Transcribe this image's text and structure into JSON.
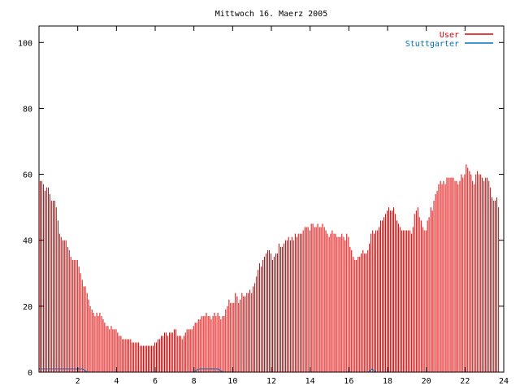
{
  "chart_data": {
    "type": "bar",
    "title": "Mittwoch 16. Maerz 2005",
    "xlabel": "",
    "ylabel": "",
    "xlim": [
      0,
      24
    ],
    "ylim": [
      0,
      105
    ],
    "x_ticks": [
      2,
      4,
      6,
      8,
      10,
      12,
      14,
      16,
      18,
      20,
      22,
      24
    ],
    "y_ticks": [
      0,
      20,
      40,
      60,
      80,
      100
    ],
    "grid": false,
    "legend_position": "top-right",
    "series": [
      {
        "name": "User",
        "color": "#e00000",
        "points": [
          [
            0.0,
            58
          ],
          [
            0.08,
            58
          ],
          [
            0.17,
            57
          ],
          [
            0.25,
            55
          ],
          [
            0.33,
            56
          ],
          [
            0.42,
            56
          ],
          [
            0.5,
            54
          ],
          [
            0.58,
            52
          ],
          [
            0.67,
            52
          ],
          [
            0.75,
            52
          ],
          [
            0.83,
            50
          ],
          [
            0.92,
            46
          ],
          [
            1.0,
            42
          ],
          [
            1.08,
            41
          ],
          [
            1.17,
            40
          ],
          [
            1.25,
            40
          ],
          [
            1.33,
            40
          ],
          [
            1.42,
            38
          ],
          [
            1.5,
            37
          ],
          [
            1.58,
            35
          ],
          [
            1.67,
            34
          ],
          [
            1.75,
            34
          ],
          [
            1.83,
            34
          ],
          [
            1.92,
            34
          ],
          [
            2.0,
            32
          ],
          [
            2.08,
            30
          ],
          [
            2.17,
            28
          ],
          [
            2.25,
            26
          ],
          [
            2.33,
            26
          ],
          [
            2.42,
            24
          ],
          [
            2.5,
            22
          ],
          [
            2.58,
            20
          ],
          [
            2.67,
            19
          ],
          [
            2.75,
            18
          ],
          [
            2.83,
            17
          ],
          [
            2.92,
            18
          ],
          [
            3.0,
            17
          ],
          [
            3.08,
            18
          ],
          [
            3.17,
            17
          ],
          [
            3.25,
            16
          ],
          [
            3.33,
            15
          ],
          [
            3.42,
            14
          ],
          [
            3.5,
            14
          ],
          [
            3.58,
            13
          ],
          [
            3.67,
            14
          ],
          [
            3.75,
            13
          ],
          [
            3.83,
            13
          ],
          [
            3.92,
            13
          ],
          [
            4.0,
            12
          ],
          [
            4.08,
            11
          ],
          [
            4.17,
            11
          ],
          [
            4.25,
            10
          ],
          [
            4.33,
            10
          ],
          [
            4.42,
            10
          ],
          [
            4.5,
            10
          ],
          [
            4.58,
            10
          ],
          [
            4.67,
            10
          ],
          [
            4.75,
            9
          ],
          [
            4.83,
            9
          ],
          [
            4.92,
            9
          ],
          [
            5.0,
            9
          ],
          [
            5.08,
            9
          ],
          [
            5.17,
            8
          ],
          [
            5.25,
            8
          ],
          [
            5.33,
            8
          ],
          [
            5.42,
            8
          ],
          [
            5.5,
            8
          ],
          [
            5.58,
            8
          ],
          [
            5.67,
            8
          ],
          [
            5.75,
            8
          ],
          [
            5.83,
            8
          ],
          [
            5.92,
            9
          ],
          [
            6.0,
            9
          ],
          [
            6.08,
            10
          ],
          [
            6.17,
            10
          ],
          [
            6.25,
            11
          ],
          [
            6.33,
            11
          ],
          [
            6.42,
            12
          ],
          [
            6.5,
            12
          ],
          [
            6.58,
            11
          ],
          [
            6.67,
            12
          ],
          [
            6.75,
            12
          ],
          [
            6.83,
            12
          ],
          [
            6.92,
            13
          ],
          [
            7.0,
            13
          ],
          [
            7.08,
            11
          ],
          [
            7.17,
            11
          ],
          [
            7.25,
            11
          ],
          [
            7.33,
            10
          ],
          [
            7.42,
            11
          ],
          [
            7.5,
            12
          ],
          [
            7.58,
            13
          ],
          [
            7.67,
            13
          ],
          [
            7.75,
            13
          ],
          [
            7.83,
            13
          ],
          [
            7.92,
            14
          ],
          [
            8.0,
            15
          ],
          [
            8.08,
            15
          ],
          [
            8.17,
            16
          ],
          [
            8.25,
            16
          ],
          [
            8.33,
            17
          ],
          [
            8.42,
            17
          ],
          [
            8.5,
            17
          ],
          [
            8.58,
            18
          ],
          [
            8.67,
            17
          ],
          [
            8.75,
            17
          ],
          [
            8.83,
            16
          ],
          [
            8.92,
            17
          ],
          [
            9.0,
            18
          ],
          [
            9.08,
            17
          ],
          [
            9.17,
            18
          ],
          [
            9.25,
            17
          ],
          [
            9.33,
            16
          ],
          [
            9.42,
            17
          ],
          [
            9.5,
            17
          ],
          [
            9.58,
            19
          ],
          [
            9.67,
            20
          ],
          [
            9.75,
            22
          ],
          [
            9.83,
            21
          ],
          [
            9.92,
            21
          ],
          [
            10.0,
            21
          ],
          [
            10.08,
            24
          ],
          [
            10.17,
            23
          ],
          [
            10.25,
            21
          ],
          [
            10.33,
            22
          ],
          [
            10.42,
            24
          ],
          [
            10.5,
            23
          ],
          [
            10.58,
            23
          ],
          [
            10.67,
            24
          ],
          [
            10.75,
            24
          ],
          [
            10.83,
            25
          ],
          [
            10.92,
            24
          ],
          [
            11.0,
            26
          ],
          [
            11.08,
            27
          ],
          [
            11.17,
            29
          ],
          [
            11.25,
            31
          ],
          [
            11.33,
            33
          ],
          [
            11.42,
            32
          ],
          [
            11.5,
            34
          ],
          [
            11.58,
            35
          ],
          [
            11.67,
            36
          ],
          [
            11.75,
            37
          ],
          [
            11.83,
            37
          ],
          [
            11.92,
            36
          ],
          [
            12.0,
            34
          ],
          [
            12.08,
            35
          ],
          [
            12.17,
            36
          ],
          [
            12.25,
            36
          ],
          [
            12.33,
            39
          ],
          [
            12.42,
            38
          ],
          [
            12.5,
            38
          ],
          [
            12.58,
            39
          ],
          [
            12.67,
            40
          ],
          [
            12.75,
            40
          ],
          [
            12.83,
            41
          ],
          [
            12.92,
            40
          ],
          [
            13.0,
            41
          ],
          [
            13.08,
            40
          ],
          [
            13.17,
            42
          ],
          [
            13.25,
            41
          ],
          [
            13.33,
            42
          ],
          [
            13.42,
            42
          ],
          [
            13.5,
            42
          ],
          [
            13.58,
            43
          ],
          [
            13.67,
            44
          ],
          [
            13.75,
            44
          ],
          [
            13.83,
            44
          ],
          [
            13.92,
            43
          ],
          [
            14.0,
            45
          ],
          [
            14.08,
            45
          ],
          [
            14.17,
            44
          ],
          [
            14.25,
            44
          ],
          [
            14.33,
            45
          ],
          [
            14.42,
            44
          ],
          [
            14.5,
            44
          ],
          [
            14.58,
            45
          ],
          [
            14.67,
            44
          ],
          [
            14.75,
            43
          ],
          [
            14.83,
            42
          ],
          [
            14.92,
            41
          ],
          [
            15.0,
            42
          ],
          [
            15.08,
            43
          ],
          [
            15.17,
            42
          ],
          [
            15.25,
            42
          ],
          [
            15.33,
            41
          ],
          [
            15.42,
            41
          ],
          [
            15.5,
            41
          ],
          [
            15.58,
            42
          ],
          [
            15.67,
            41
          ],
          [
            15.75,
            40
          ],
          [
            15.83,
            42
          ],
          [
            15.92,
            41
          ],
          [
            16.0,
            38
          ],
          [
            16.08,
            37
          ],
          [
            16.17,
            35
          ],
          [
            16.25,
            34
          ],
          [
            16.33,
            34
          ],
          [
            16.42,
            35
          ],
          [
            16.5,
            35
          ],
          [
            16.58,
            36
          ],
          [
            16.67,
            37
          ],
          [
            16.75,
            36
          ],
          [
            16.83,
            36
          ],
          [
            16.92,
            37
          ],
          [
            17.0,
            39
          ],
          [
            17.08,
            42
          ],
          [
            17.17,
            43
          ],
          [
            17.25,
            42
          ],
          [
            17.33,
            43
          ],
          [
            17.42,
            43
          ],
          [
            17.5,
            44
          ],
          [
            17.58,
            46
          ],
          [
            17.67,
            46
          ],
          [
            17.75,
            47
          ],
          [
            17.83,
            48
          ],
          [
            17.92,
            49
          ],
          [
            18.0,
            50
          ],
          [
            18.08,
            49
          ],
          [
            18.17,
            49
          ],
          [
            18.25,
            50
          ],
          [
            18.33,
            48
          ],
          [
            18.42,
            46
          ],
          [
            18.5,
            45
          ],
          [
            18.58,
            44
          ],
          [
            18.67,
            43
          ],
          [
            18.75,
            43
          ],
          [
            18.83,
            43
          ],
          [
            18.92,
            43
          ],
          [
            19.0,
            43
          ],
          [
            19.08,
            43
          ],
          [
            19.17,
            42
          ],
          [
            19.25,
            44
          ],
          [
            19.33,
            48
          ],
          [
            19.42,
            49
          ],
          [
            19.5,
            50
          ],
          [
            19.58,
            47
          ],
          [
            19.67,
            46
          ],
          [
            19.75,
            44
          ],
          [
            19.83,
            43
          ],
          [
            19.92,
            43
          ],
          [
            20.0,
            46
          ],
          [
            20.08,
            47
          ],
          [
            20.17,
            50
          ],
          [
            20.25,
            49
          ],
          [
            20.33,
            52
          ],
          [
            20.42,
            54
          ],
          [
            20.5,
            55
          ],
          [
            20.58,
            57
          ],
          [
            20.67,
            58
          ],
          [
            20.75,
            57
          ],
          [
            20.83,
            58
          ],
          [
            20.92,
            57
          ],
          [
            21.0,
            59
          ],
          [
            21.08,
            59
          ],
          [
            21.17,
            59
          ],
          [
            21.25,
            59
          ],
          [
            21.33,
            59
          ],
          [
            21.42,
            58
          ],
          [
            21.5,
            58
          ],
          [
            21.58,
            57
          ],
          [
            21.67,
            58
          ],
          [
            21.75,
            60
          ],
          [
            21.83,
            59
          ],
          [
            21.92,
            60
          ],
          [
            22.0,
            63
          ],
          [
            22.08,
            62
          ],
          [
            22.17,
            61
          ],
          [
            22.25,
            60
          ],
          [
            22.33,
            58
          ],
          [
            22.42,
            57
          ],
          [
            22.5,
            60
          ],
          [
            22.58,
            61
          ],
          [
            22.67,
            60
          ],
          [
            22.75,
            60
          ],
          [
            22.83,
            59
          ],
          [
            22.92,
            58
          ],
          [
            23.0,
            59
          ],
          [
            23.08,
            59
          ],
          [
            23.17,
            58
          ],
          [
            23.25,
            56
          ],
          [
            23.33,
            53
          ],
          [
            23.42,
            52
          ],
          [
            23.5,
            52
          ],
          [
            23.58,
            53
          ],
          [
            23.67,
            50
          ]
        ]
      },
      {
        "name": "Stuttgarter",
        "color": "#0070c0",
        "points": [
          [
            0.0,
            1
          ],
          [
            0.25,
            1
          ],
          [
            0.5,
            1
          ],
          [
            0.75,
            1
          ],
          [
            1.0,
            1
          ],
          [
            1.25,
            1
          ],
          [
            1.5,
            1
          ],
          [
            1.75,
            1
          ],
          [
            2.0,
            1
          ],
          [
            2.25,
            1
          ],
          [
            2.5,
            0
          ],
          [
            3.0,
            0
          ],
          [
            4.0,
            0
          ],
          [
            5.0,
            0
          ],
          [
            6.0,
            0
          ],
          [
            7.0,
            0
          ],
          [
            8.0,
            0
          ],
          [
            8.25,
            1
          ],
          [
            8.5,
            1
          ],
          [
            8.75,
            1
          ],
          [
            9.0,
            1
          ],
          [
            9.25,
            1
          ],
          [
            9.5,
            0
          ],
          [
            10.0,
            0
          ],
          [
            11.0,
            0
          ],
          [
            12.0,
            0
          ],
          [
            13.0,
            0
          ],
          [
            14.0,
            0
          ],
          [
            15.0,
            0
          ],
          [
            16.0,
            0
          ],
          [
            17.0,
            0
          ],
          [
            17.2,
            1
          ],
          [
            17.4,
            0
          ],
          [
            18.0,
            0
          ],
          [
            19.0,
            0
          ],
          [
            20.0,
            0
          ],
          [
            21.0,
            0
          ],
          [
            22.0,
            0
          ],
          [
            23.0,
            0
          ],
          [
            24.0,
            0
          ]
        ]
      }
    ]
  }
}
